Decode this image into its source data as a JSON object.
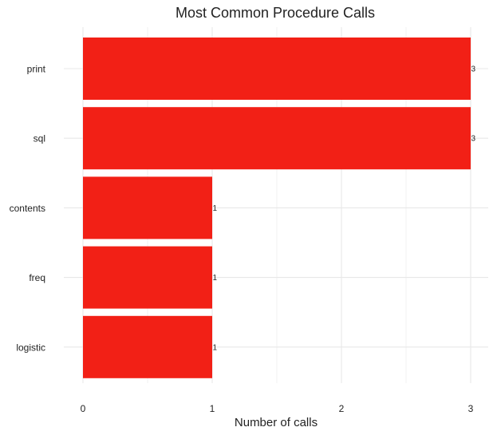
{
  "chart_data": {
    "type": "bar",
    "orientation": "horizontal",
    "title": "Most Common Procedure Calls",
    "xlabel": "Number of calls",
    "ylabel": "",
    "categories": [
      "print",
      "sql",
      "contents",
      "freq",
      "logistic"
    ],
    "values": [
      3,
      3,
      1,
      1,
      1
    ],
    "data_labels": [
      "3",
      "3",
      "1",
      "1",
      "1"
    ],
    "xticks": [
      0,
      1,
      2,
      3
    ],
    "xtick_labels": [
      "0",
      "1",
      "2",
      "3"
    ],
    "xlim": [
      0,
      3
    ],
    "grid": true,
    "legend": "none",
    "bar_color": "#f22016",
    "grid_color": "#e8e8e8"
  }
}
